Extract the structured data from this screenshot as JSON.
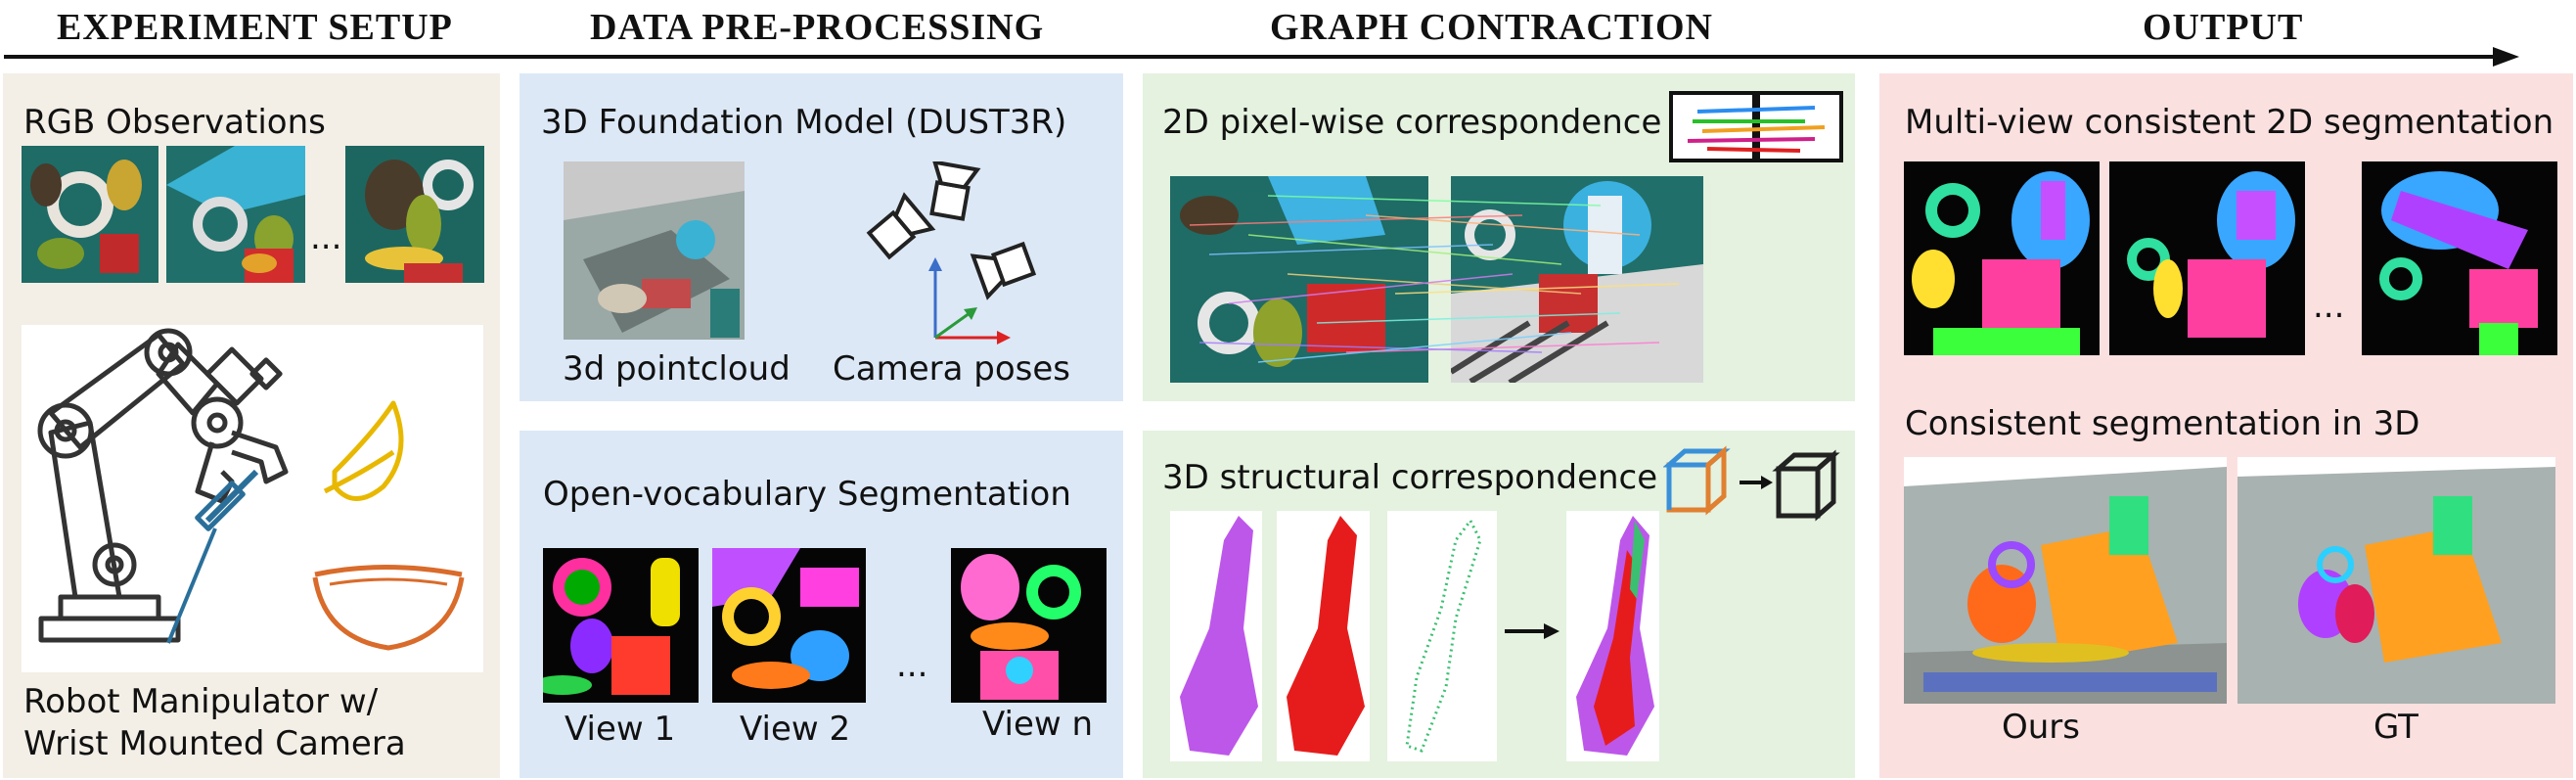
{
  "headers": {
    "setup": "EXPERIMENT SETUP",
    "preprocessing": "DATA PRE-PROCESSING",
    "contraction": "GRAPH CONTRACTION",
    "output": "OUTPUT"
  },
  "setup": {
    "rgb_title": "RGB Observations",
    "ellipsis": "...",
    "robot_caption_line1": "Robot Manipulator w/",
    "robot_caption_line2": "Wrist Mounted Camera"
  },
  "preprocessing": {
    "foundation_title": "3D Foundation Model (DUST3R)",
    "pointcloud_label": "3d pointcloud",
    "camera_label": "Camera poses",
    "segmentation_title": "Open-vocabulary Segmentation",
    "views": [
      "View 1",
      "View 2",
      "View n"
    ],
    "ellipsis": "..."
  },
  "contraction": {
    "pixel_title": "2D pixel-wise correspondence",
    "structural_title": "3D structural correspondence"
  },
  "output": {
    "multiview_title": "Multi-view consistent 2D segmentation",
    "ellipsis": "...",
    "consistent3d_title": "Consistent segmentation in 3D",
    "ours_label": "Ours",
    "gt_label": "GT"
  },
  "colors": {
    "setup_bg": "#f3efe6",
    "preprocessing_bg": "#dce8f6",
    "contraction_bg": "#e4f2df",
    "output_bg": "#fbe0e0",
    "teal": "#1d6a64",
    "seg_black": "#050505"
  }
}
